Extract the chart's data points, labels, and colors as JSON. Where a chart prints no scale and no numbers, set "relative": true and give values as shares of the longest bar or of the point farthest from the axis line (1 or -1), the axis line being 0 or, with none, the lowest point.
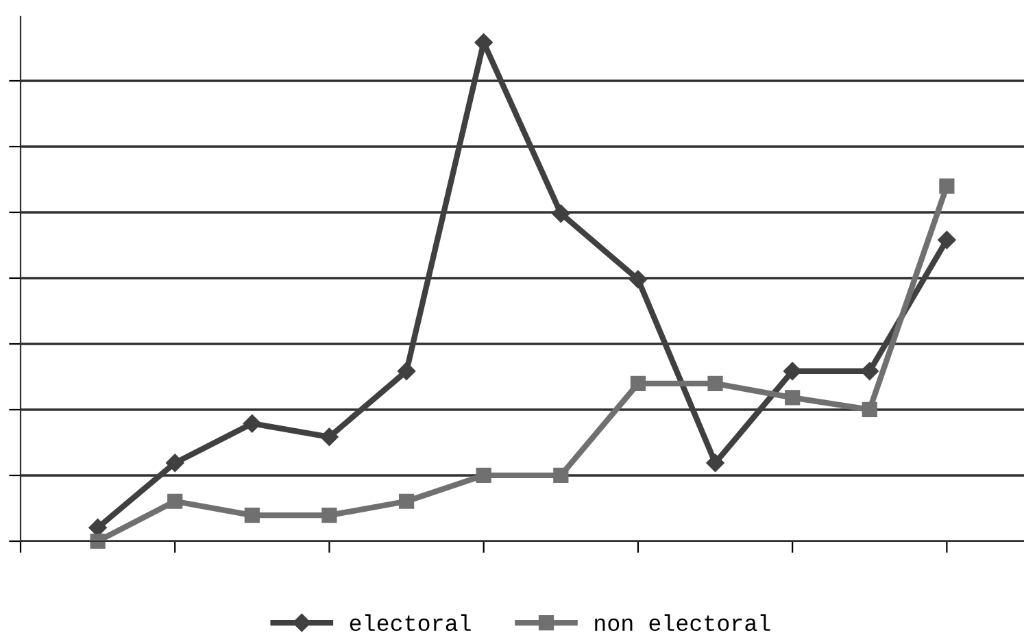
{
  "chart_data": {
    "type": "line",
    "relative": true,
    "categories": [
      null,
      null,
      null,
      null,
      null,
      null,
      null,
      null,
      null,
      null,
      null,
      null,
      null,
      null
    ],
    "series": [
      {
        "name": "electoral",
        "color": "#404040",
        "marker": "diamond",
        "values": [
          null,
          0.027,
          0.157,
          0.236,
          0.209,
          0.341,
          1,
          0.657,
          0.525,
          0.157,
          0.341,
          0.341,
          0.604,
          null
        ]
      },
      {
        "name": "non electoral",
        "color": "#707070",
        "marker": "square",
        "values": [
          null,
          0,
          0.08,
          0.052,
          0.052,
          0.08,
          0.132,
          0.132,
          0.316,
          0.316,
          0.288,
          0.264,
          0.712,
          null
        ]
      }
    ],
    "grid": "y",
    "legend": "bottom",
    "tick_labels": false
  }
}
